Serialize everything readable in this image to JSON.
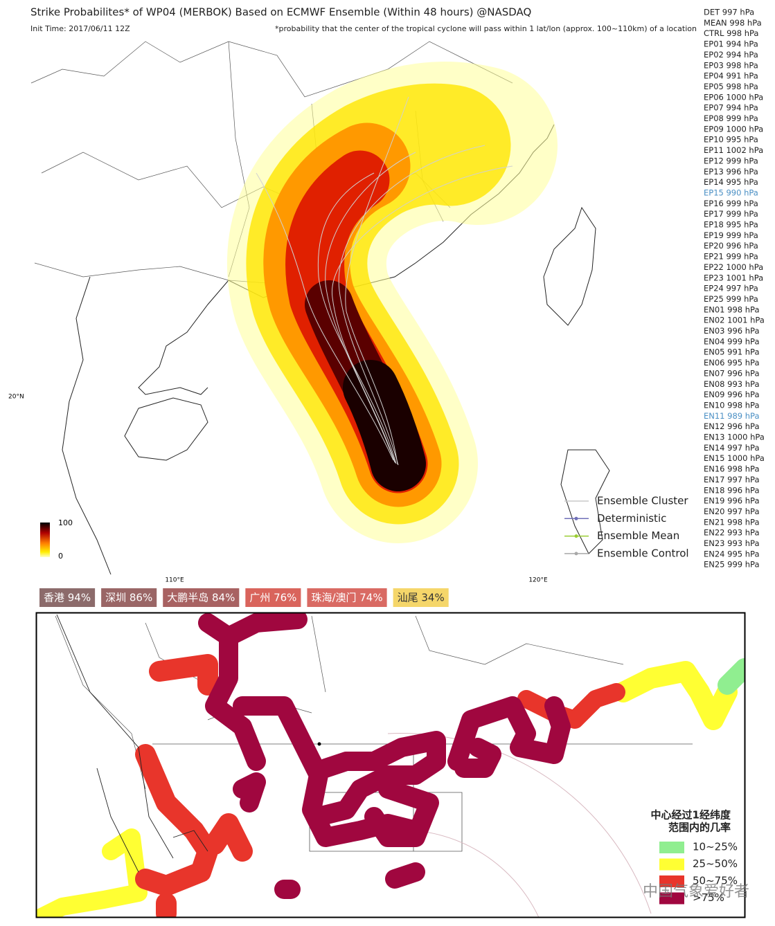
{
  "header": {
    "title": "Strike Probabilites* of WP04 (MERBOK) Based on ECMWF Ensemble (Within 48 hours) @NASDAQ",
    "init_time": "Init Time: 2017/06/11 12Z",
    "note": "*probability that the center of the tropical cyclone will pass within 1 lat/lon (approx. 100~110km) of a location"
  },
  "members": [
    {
      "label": "DET 997 hPa"
    },
    {
      "label": "MEAN 998 hPa"
    },
    {
      "label": "CTRL 998 hPa"
    },
    {
      "label": "EP01 994 hPa"
    },
    {
      "label": "EP02 994 hPa"
    },
    {
      "label": "EP03 998 hPa"
    },
    {
      "label": "EP04 991 hPa"
    },
    {
      "label": "EP05 998 hPa"
    },
    {
      "label": "EP06 1000 hPa"
    },
    {
      "label": "EP07 994 hPa"
    },
    {
      "label": "EP08 999 hPa"
    },
    {
      "label": "EP09 1000 hPa"
    },
    {
      "label": "EP10 995 hPa"
    },
    {
      "label": "EP11 1002 hPa"
    },
    {
      "label": "EP12 999 hPa"
    },
    {
      "label": "EP13 996 hPa"
    },
    {
      "label": "EP14 995 hPa"
    },
    {
      "label": "EP15 990 hPa",
      "color": "#4a8fc4"
    },
    {
      "label": "EP16 999 hPa"
    },
    {
      "label": "EP17 999 hPa"
    },
    {
      "label": "EP18 995 hPa"
    },
    {
      "label": "EP19 999 hPa"
    },
    {
      "label": "EP20 996 hPa"
    },
    {
      "label": "EP21 999 hPa"
    },
    {
      "label": "EP22 1000 hPa"
    },
    {
      "label": "EP23 1001 hPa"
    },
    {
      "label": "EP24 997 hPa"
    },
    {
      "label": "EP25 999 hPa"
    },
    {
      "label": "EN01 998 hPa"
    },
    {
      "label": "EN02 1001 hPa"
    },
    {
      "label": "EN03 996 hPa"
    },
    {
      "label": "EN04 999 hPa"
    },
    {
      "label": "EN05 991 hPa"
    },
    {
      "label": "EN06 995 hPa"
    },
    {
      "label": "EN07 996 hPa"
    },
    {
      "label": "EN08 993 hPa"
    },
    {
      "label": "EN09 996 hPa"
    },
    {
      "label": "EN10 998 hPa"
    },
    {
      "label": "EN11 989 hPa",
      "color": "#4a8fc4"
    },
    {
      "label": "EN12 996 hPa"
    },
    {
      "label": "EN13 1000 hPa"
    },
    {
      "label": "EN14 997 hPa"
    },
    {
      "label": "EN15 1000 hPa"
    },
    {
      "label": "EN16 998 hPa"
    },
    {
      "label": "EN17 997 hPa"
    },
    {
      "label": "EN18 996 hPa"
    },
    {
      "label": "EN19 996 hPa"
    },
    {
      "label": "EN20 997 hPa"
    },
    {
      "label": "EN21 998 hPa"
    },
    {
      "label": "EN22 993 hPa"
    },
    {
      "label": "EN23 993 hPa"
    },
    {
      "label": "EN24 995 hPa"
    },
    {
      "label": "EN25 999 hPa"
    }
  ],
  "track_legend": [
    {
      "label": "Ensemble Cluster",
      "color": "#c8c8c8",
      "dot": false
    },
    {
      "label": "Deterministic",
      "color": "#7070b8",
      "dot": true
    },
    {
      "label": "Ensemble Mean",
      "color": "#9acd32",
      "dot": true
    },
    {
      "label": "Ensemble Control",
      "color": "#a8a8a8",
      "dot": true
    }
  ],
  "colorbar": {
    "max": "100",
    "min": "0"
  },
  "axis_labels": {
    "lat": "20°N",
    "lon": [
      "110°E",
      "120°E"
    ]
  },
  "cities": [
    {
      "label": "香港 94%",
      "color": "#8c6b6b"
    },
    {
      "label": "深圳 86%",
      "color": "#9a6666"
    },
    {
      "label": "大鹏半岛 84%",
      "color": "#a86262"
    },
    {
      "label": "广州 76%",
      "color": "#d9645c"
    },
    {
      "label": "珠海/澳门 74%",
      "color": "#d96a63"
    },
    {
      "label": "汕尾 34%",
      "color": "#f5d66a",
      "text_color": "#333333"
    }
  ],
  "prob_legend": {
    "title": [
      "中心经过1经纬度",
      "范围内的几率"
    ],
    "entries": [
      {
        "label": "10~25%",
        "color": "#90ee90"
      },
      {
        "label": "25~50%",
        "color": "#ffff33"
      },
      {
        "label": "50~75%",
        "color": "#e8352b"
      },
      {
        "label": ">75%",
        "color": "#a0073f"
      }
    ]
  },
  "watermark": "中国气象爱好者"
}
